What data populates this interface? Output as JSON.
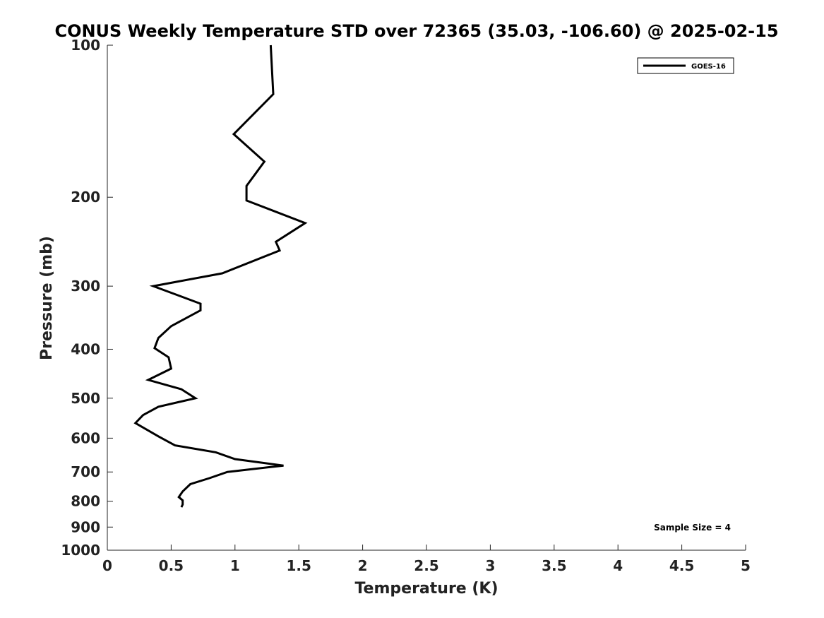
{
  "chart_data": {
    "type": "line",
    "title": "CONUS Weekly Temperature STD over 72365 (35.03, -106.60) @ 2025-02-15",
    "xlabel": "Temperature (K)",
    "ylabel": "Pressure (mb)",
    "xlim": [
      0,
      5
    ],
    "ylim": [
      100,
      1000
    ],
    "y_scale": "log",
    "y_reversed": true,
    "x_ticks": [
      "0",
      "0.5",
      "1",
      "1.5",
      "2",
      "2.5",
      "3",
      "3.5",
      "4",
      "4.5",
      "5"
    ],
    "y_ticks": [
      "100",
      "200",
      "300",
      "400",
      "500",
      "600",
      "700",
      "800",
      "900",
      "1000"
    ],
    "grid": false,
    "legend_position": "top-right",
    "annotation": "Sample Size = 4",
    "series": [
      {
        "name": "GOES-16",
        "color": "#000000",
        "points": [
          [
            1.28,
            100
          ],
          [
            1.3,
            125
          ],
          [
            0.99,
            150
          ],
          [
            1.23,
            170
          ],
          [
            1.09,
            190
          ],
          [
            1.09,
            203
          ],
          [
            1.55,
            225
          ],
          [
            1.32,
            245
          ],
          [
            1.35,
            255
          ],
          [
            0.9,
            283
          ],
          [
            0.36,
            300
          ],
          [
            0.73,
            325
          ],
          [
            0.73,
            335
          ],
          [
            0.5,
            360
          ],
          [
            0.4,
            380
          ],
          [
            0.37,
            398
          ],
          [
            0.48,
            415
          ],
          [
            0.5,
            437
          ],
          [
            0.32,
            460
          ],
          [
            0.58,
            480
          ],
          [
            0.69,
            500
          ],
          [
            0.4,
            520
          ],
          [
            0.28,
            540
          ],
          [
            0.22,
            560
          ],
          [
            0.4,
            595
          ],
          [
            0.53,
            620
          ],
          [
            0.85,
            640
          ],
          [
            1.0,
            660
          ],
          [
            1.38,
            680
          ],
          [
            0.94,
            700
          ],
          [
            0.8,
            720
          ],
          [
            0.65,
            740
          ],
          [
            0.59,
            765
          ],
          [
            0.56,
            785
          ],
          [
            0.59,
            797
          ],
          [
            0.59,
            812
          ],
          [
            0.58,
            822
          ]
        ]
      }
    ]
  }
}
